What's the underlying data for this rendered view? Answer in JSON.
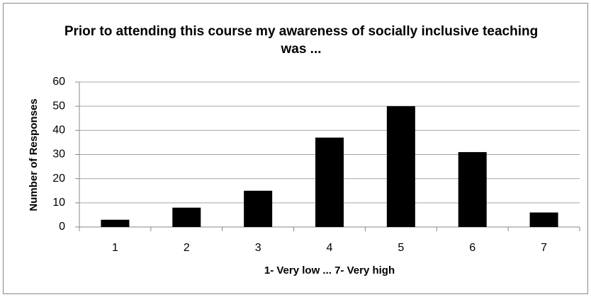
{
  "chart_data": {
    "type": "bar",
    "title": "Prior to attending this course my awareness of socially inclusive teaching was ...",
    "x_label": "1- Very low ...   7- Very high",
    "y_label": "Number of Responses",
    "categories": [
      "1",
      "2",
      "3",
      "4",
      "5",
      "6",
      "7"
    ],
    "values": [
      3,
      8,
      15,
      37,
      50,
      31,
      6
    ],
    "color": "#000000",
    "ylim": [
      0,
      60
    ],
    "yticks": [
      0,
      10,
      20,
      30,
      40,
      50,
      60
    ],
    "grid": true
  }
}
